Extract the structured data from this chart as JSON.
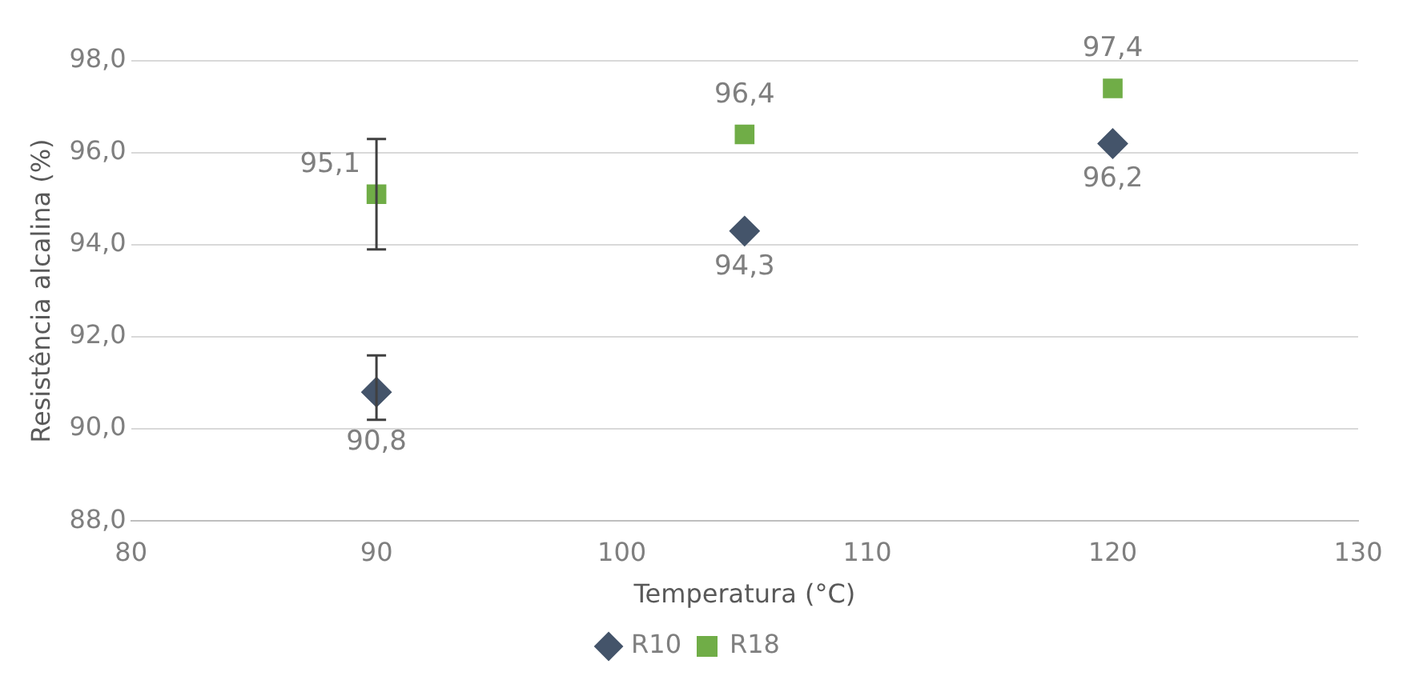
{
  "chart_data": {
    "type": "scatter",
    "xlabel": "Temperatura (°C)",
    "ylabel": "Resistência alcalina (%)",
    "xlim": [
      80,
      130
    ],
    "xticks": [
      80,
      90,
      100,
      110,
      120,
      130
    ],
    "ylim": [
      88,
      98
    ],
    "yticks": [
      {
        "value": 88,
        "label": "88,0"
      },
      {
        "value": 90,
        "label": "90,0"
      },
      {
        "value": 92,
        "label": "92,0"
      },
      {
        "value": 94,
        "label": "94,0"
      },
      {
        "value": 96,
        "label": "96,0"
      },
      {
        "value": 98,
        "label": "98,0"
      }
    ],
    "grid": "y",
    "legend": "bottom",
    "series": [
      {
        "name": "R10",
        "color": "#44546a",
        "marker": "diamond",
        "x": [
          90,
          105,
          120
        ],
        "values": [
          90.8,
          94.3,
          96.2
        ],
        "value_labels": [
          "90,8",
          "94,3",
          "96,2"
        ],
        "errors": [
          [
            90.2,
            91.6
          ],
          null,
          null
        ]
      },
      {
        "name": "R18",
        "color": "#70ad47",
        "marker": "square",
        "x": [
          90,
          105,
          120
        ],
        "values": [
          95.1,
          96.4,
          97.4
        ],
        "value_labels": [
          "95,1",
          "96,4",
          "97,4"
        ],
        "errors": [
          [
            93.9,
            96.3
          ],
          null,
          null
        ]
      }
    ]
  }
}
